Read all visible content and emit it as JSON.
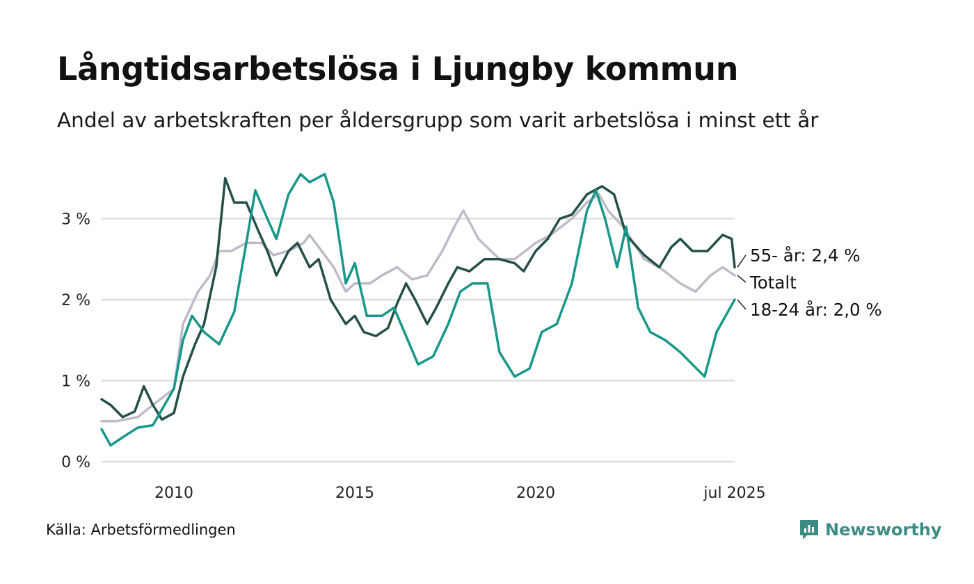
{
  "title": "Långtidsarbetslösa i Ljungby kommun",
  "subtitle": "Andel av arbetskraften per åldersgrupp som varit arbetslösa i minst ett år",
  "source": "Källa: Arbetsförmedlingen",
  "brand": "Newsworthy",
  "colors": {
    "age_55": "#234f48",
    "total": "#bfbac8",
    "age_18_24": "#17978a",
    "grid": "#dedede",
    "brand": "#3d8c84"
  },
  "chart_data": {
    "type": "line",
    "y_unit": "%",
    "ylim": [
      0,
      3.8
    ],
    "y_ticks": [
      "0 %",
      "1 %",
      "2 %",
      "3 %"
    ],
    "x_ticks": [
      "2010",
      "2015",
      "2020",
      "jul 2025"
    ],
    "xlim": [
      "2008-01",
      "2025-07"
    ],
    "grid": "horizontal",
    "series": [
      {
        "name": "Totalt",
        "end_label": "Totalt",
        "color": "#bfbac8",
        "points": [
          [
            "2008-01",
            0.5
          ],
          [
            "2008-06",
            0.5
          ],
          [
            "2009-01",
            0.55
          ],
          [
            "2009-06",
            0.7
          ],
          [
            "2010-01",
            0.9
          ],
          [
            "2010-04",
            1.7
          ],
          [
            "2010-09",
            2.1
          ],
          [
            "2011-01",
            2.3
          ],
          [
            "2011-04",
            2.6
          ],
          [
            "2011-08",
            2.6
          ],
          [
            "2012-01",
            2.7
          ],
          [
            "2012-06",
            2.7
          ],
          [
            "2012-10",
            2.55
          ],
          [
            "2013-03",
            2.6
          ],
          [
            "2013-08",
            2.7
          ],
          [
            "2013-10",
            2.8
          ],
          [
            "2014-02",
            2.6
          ],
          [
            "2014-06",
            2.4
          ],
          [
            "2014-10",
            2.1
          ],
          [
            "2015-01",
            2.2
          ],
          [
            "2015-06",
            2.2
          ],
          [
            "2015-10",
            2.3
          ],
          [
            "2016-03",
            2.4
          ],
          [
            "2016-08",
            2.25
          ],
          [
            "2017-01",
            2.3
          ],
          [
            "2017-06",
            2.6
          ],
          [
            "2017-10",
            2.9
          ],
          [
            "2018-01",
            3.1
          ],
          [
            "2018-06",
            2.75
          ],
          [
            "2019-01",
            2.5
          ],
          [
            "2019-06",
            2.5
          ],
          [
            "2020-01",
            2.7
          ],
          [
            "2020-06",
            2.8
          ],
          [
            "2021-01",
            3.0
          ],
          [
            "2021-06",
            3.2
          ],
          [
            "2021-10",
            3.3
          ],
          [
            "2022-01",
            3.1
          ],
          [
            "2022-06",
            2.9
          ],
          [
            "2023-01",
            2.5
          ],
          [
            "2023-06",
            2.4
          ],
          [
            "2024-01",
            2.2
          ],
          [
            "2024-06",
            2.1
          ],
          [
            "2024-11",
            2.3
          ],
          [
            "2025-03",
            2.4
          ],
          [
            "2025-07",
            2.3
          ]
        ]
      },
      {
        "name": "55- år",
        "end_label": "55- år: 2,4 %",
        "color": "#234f48",
        "points": [
          [
            "2008-01",
            0.77
          ],
          [
            "2008-04",
            0.7
          ],
          [
            "2008-08",
            0.55
          ],
          [
            "2008-12",
            0.62
          ],
          [
            "2009-03",
            0.93
          ],
          [
            "2009-06",
            0.7
          ],
          [
            "2009-09",
            0.52
          ],
          [
            "2010-01",
            0.6
          ],
          [
            "2010-04",
            1.05
          ],
          [
            "2010-08",
            1.45
          ],
          [
            "2010-11",
            1.7
          ],
          [
            "2011-03",
            2.4
          ],
          [
            "2011-06",
            3.5
          ],
          [
            "2011-09",
            3.2
          ],
          [
            "2012-01",
            3.2
          ],
          [
            "2012-05",
            2.85
          ],
          [
            "2012-08",
            2.6
          ],
          [
            "2012-11",
            2.3
          ],
          [
            "2013-03",
            2.6
          ],
          [
            "2013-06",
            2.7
          ],
          [
            "2013-10",
            2.4
          ],
          [
            "2014-01",
            2.5
          ],
          [
            "2014-05",
            2.0
          ],
          [
            "2014-10",
            1.7
          ],
          [
            "2015-01",
            1.8
          ],
          [
            "2015-04",
            1.6
          ],
          [
            "2015-08",
            1.55
          ],
          [
            "2015-12",
            1.65
          ],
          [
            "2016-03",
            1.95
          ],
          [
            "2016-06",
            2.2
          ],
          [
            "2016-09",
            2.0
          ],
          [
            "2017-01",
            1.7
          ],
          [
            "2017-04",
            1.9
          ],
          [
            "2017-08",
            2.2
          ],
          [
            "2017-11",
            2.4
          ],
          [
            "2018-03",
            2.35
          ],
          [
            "2018-08",
            2.5
          ],
          [
            "2019-01",
            2.5
          ],
          [
            "2019-06",
            2.45
          ],
          [
            "2019-09",
            2.35
          ],
          [
            "2020-01",
            2.6
          ],
          [
            "2020-05",
            2.75
          ],
          [
            "2020-09",
            3.0
          ],
          [
            "2021-01",
            3.05
          ],
          [
            "2021-06",
            3.3
          ],
          [
            "2021-11",
            3.4
          ],
          [
            "2022-03",
            3.3
          ],
          [
            "2022-07",
            2.8
          ],
          [
            "2023-01",
            2.55
          ],
          [
            "2023-06",
            2.4
          ],
          [
            "2023-10",
            2.65
          ],
          [
            "2024-01",
            2.75
          ],
          [
            "2024-05",
            2.6
          ],
          [
            "2024-10",
            2.6
          ],
          [
            "2025-03",
            2.8
          ],
          [
            "2025-06",
            2.75
          ],
          [
            "2025-07",
            2.4
          ]
        ]
      },
      {
        "name": "18-24 år",
        "end_label": "18-24 år: 2,0 %",
        "color": "#17978a",
        "points": [
          [
            "2008-01",
            0.4
          ],
          [
            "2008-04",
            0.2
          ],
          [
            "2008-08",
            0.3
          ],
          [
            "2009-01",
            0.42
          ],
          [
            "2009-06",
            0.45
          ],
          [
            "2010-01",
            0.9
          ],
          [
            "2010-04",
            1.5
          ],
          [
            "2010-07",
            1.8
          ],
          [
            "2010-11",
            1.6
          ],
          [
            "2011-04",
            1.45
          ],
          [
            "2011-09",
            1.85
          ],
          [
            "2012-01",
            2.7
          ],
          [
            "2012-04",
            3.35
          ],
          [
            "2012-08",
            3.0
          ],
          [
            "2012-11",
            2.75
          ],
          [
            "2013-03",
            3.3
          ],
          [
            "2013-07",
            3.55
          ],
          [
            "2013-10",
            3.45
          ],
          [
            "2014-03",
            3.55
          ],
          [
            "2014-06",
            3.2
          ],
          [
            "2014-10",
            2.2
          ],
          [
            "2015-01",
            2.45
          ],
          [
            "2015-05",
            1.8
          ],
          [
            "2015-10",
            1.8
          ],
          [
            "2016-02",
            1.9
          ],
          [
            "2016-06",
            1.55
          ],
          [
            "2016-10",
            1.2
          ],
          [
            "2017-03",
            1.3
          ],
          [
            "2017-08",
            1.7
          ],
          [
            "2017-12",
            2.1
          ],
          [
            "2018-04",
            2.2
          ],
          [
            "2018-09",
            2.2
          ],
          [
            "2019-01",
            1.35
          ],
          [
            "2019-06",
            1.05
          ],
          [
            "2019-11",
            1.15
          ],
          [
            "2020-03",
            1.6
          ],
          [
            "2020-08",
            1.7
          ],
          [
            "2021-01",
            2.2
          ],
          [
            "2021-06",
            3.1
          ],
          [
            "2021-09",
            3.35
          ],
          [
            "2021-12",
            3.0
          ],
          [
            "2022-04",
            2.4
          ],
          [
            "2022-07",
            2.9
          ],
          [
            "2022-11",
            1.9
          ],
          [
            "2023-03",
            1.6
          ],
          [
            "2023-08",
            1.5
          ],
          [
            "2024-01",
            1.35
          ],
          [
            "2024-05",
            1.2
          ],
          [
            "2024-09",
            1.05
          ],
          [
            "2025-01",
            1.6
          ],
          [
            "2025-04",
            1.8
          ],
          [
            "2025-07",
            2.0
          ]
        ]
      }
    ]
  }
}
